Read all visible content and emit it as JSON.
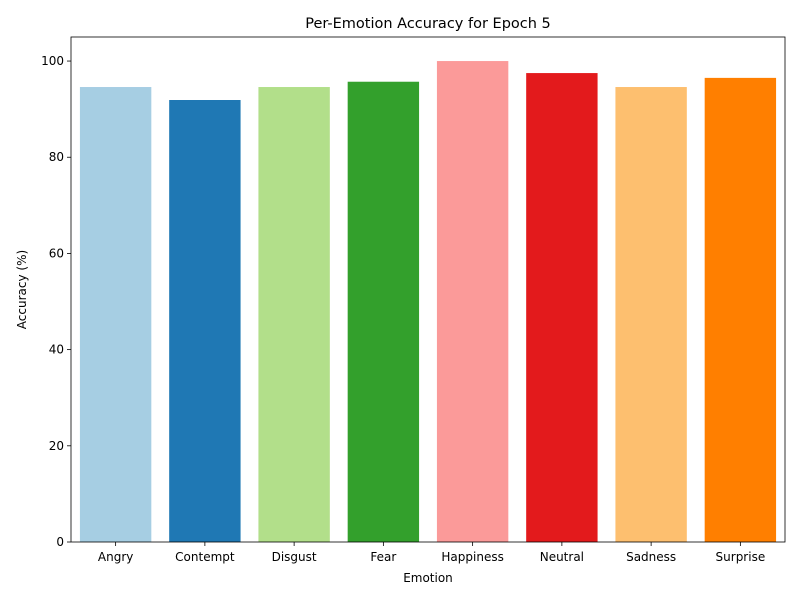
{
  "chart_data": {
    "type": "bar",
    "title": "Per-Emotion Accuracy for Epoch 5",
    "xlabel": "Emotion",
    "ylabel": "Accuracy (%)",
    "categories": [
      "Angry",
      "Contempt",
      "Disgust",
      "Fear",
      "Happiness",
      "Neutral",
      "Sadness",
      "Surprise"
    ],
    "values": [
      94.6,
      91.9,
      94.6,
      95.7,
      100.0,
      97.5,
      94.6,
      96.5
    ],
    "colors": [
      "#a6cee3",
      "#1f78b4",
      "#b2df8a",
      "#33a02c",
      "#fb9a99",
      "#e31a1c",
      "#fdbf6f",
      "#ff7f00"
    ],
    "ylim": [
      0,
      105
    ],
    "yticks": [
      0,
      20,
      40,
      60,
      80,
      100
    ],
    "grid": false,
    "legend": "none"
  }
}
